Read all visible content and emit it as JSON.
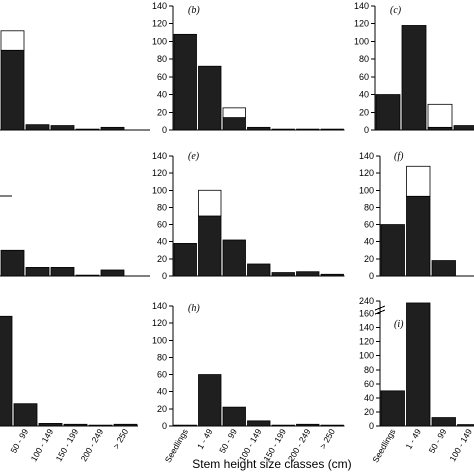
{
  "x_axis_title": "Stem height size classes (cm)",
  "colors": {
    "filled": "#1f1f1f",
    "open": "#ffffff",
    "axis": "#000000"
  },
  "chart_data": [
    {
      "panel": "a-partial",
      "type": "bar",
      "label": "",
      "categories": [
        "",
        "",
        "",
        "",
        "",
        "",
        ""
      ],
      "series": [
        {
          "values": [
            15,
            90,
            6,
            5,
            1,
            3,
            null
          ]
        },
        {
          "values": [
            0,
            22,
            0,
            0,
            0,
            0,
            null
          ]
        }
      ],
      "ylim": [
        0,
        140
      ],
      "yticks": []
    },
    {
      "panel": "b",
      "type": "bar",
      "label": "(b)",
      "categories": [
        "Seedlings",
        "1 - 49",
        "50 - 99",
        "100 - 149",
        "150 - 199",
        "200 - 249",
        "> 250"
      ],
      "series": [
        {
          "values": [
            108,
            72,
            14,
            3,
            1,
            1,
            1
          ]
        },
        {
          "values": [
            0,
            0,
            11,
            0,
            0,
            0,
            0
          ]
        }
      ],
      "ylim": [
        0,
        140
      ],
      "yticks": [
        0,
        20,
        40,
        60,
        80,
        100,
        120,
        140
      ]
    },
    {
      "panel": "c",
      "type": "bar",
      "label": "(c)",
      "categories": [
        "Seedlings",
        "1 - 49",
        "50 - 99",
        "100 - 149"
      ],
      "series": [
        {
          "values": [
            40,
            118,
            3,
            5
          ]
        },
        {
          "values": [
            0,
            0,
            26,
            0
          ]
        }
      ],
      "ylim": [
        0,
        140
      ],
      "yticks": [
        0,
        20,
        40,
        60,
        80,
        100,
        120,
        140
      ]
    },
    {
      "panel": "d-partial",
      "type": "bar",
      "label": "",
      "categories": [
        "",
        "",
        "",
        "",
        "",
        "",
        ""
      ],
      "series": [
        {
          "values": [
            62,
            30,
            10,
            10,
            1,
            7,
            null
          ]
        },
        {
          "values": [
            38,
            0,
            0,
            0,
            0,
            0,
            null
          ]
        }
      ],
      "ylim": [
        0,
        140
      ],
      "yticks": []
    },
    {
      "panel": "e",
      "type": "bar",
      "label": "(e)",
      "categories": [
        "Seedlings",
        "1 - 49",
        "50 - 99",
        "100 - 149",
        "150 - 199",
        "200 - 249",
        "> 250"
      ],
      "series": [
        {
          "values": [
            38,
            70,
            42,
            14,
            4,
            5,
            2
          ]
        },
        {
          "values": [
            0,
            30,
            0,
            0,
            0,
            0,
            0
          ]
        }
      ],
      "ylim": [
        0,
        140
      ],
      "yticks": [
        0,
        20,
        40,
        60,
        80,
        100,
        120,
        140
      ]
    },
    {
      "panel": "f",
      "type": "bar",
      "label": "(f)",
      "categories": [
        "Seedlings",
        "1 - 49",
        "50 - 99",
        "100 - 149"
      ],
      "series": [
        {
          "values": [
            60,
            93,
            18,
            0
          ]
        },
        {
          "values": [
            0,
            35,
            0,
            0
          ]
        }
      ],
      "ylim": [
        0,
        140
      ],
      "yticks": [
        0,
        20,
        40,
        60,
        80,
        100,
        120,
        140
      ]
    },
    {
      "panel": "g-partial",
      "type": "bar",
      "label": "",
      "categories": [
        "",
        "50 - 99",
        "100 - 149",
        "150 - 199",
        "200 - 249",
        "> 250"
      ],
      "series": [
        {
          "values": [
            128,
            26,
            3,
            2,
            1,
            2
          ]
        },
        {
          "values": [
            0,
            0,
            0,
            0,
            0,
            0
          ]
        }
      ],
      "ylim": [
        0,
        140
      ],
      "yticks": []
    },
    {
      "panel": "h",
      "type": "bar",
      "label": "(h)",
      "categories": [
        "Seedlings",
        "1 - 49",
        "50 - 99",
        "100 - 149",
        "150 - 199",
        "200 - 249",
        "> 250"
      ],
      "series": [
        {
          "values": [
            1,
            60,
            22,
            6,
            1,
            2,
            1
          ]
        },
        {
          "values": [
            0,
            0,
            0,
            0,
            0,
            0,
            0
          ]
        }
      ],
      "ylim": [
        0,
        140
      ],
      "yticks": [
        0,
        20,
        40,
        60,
        80,
        100,
        120,
        140
      ]
    },
    {
      "panel": "i",
      "type": "bar",
      "label": "(i)",
      "categories": [
        "Seedlings",
        "1 - 49",
        "50 - 99",
        "100 - 149"
      ],
      "series": [
        {
          "values": [
            50,
            230,
            12,
            2
          ]
        },
        {
          "values": [
            0,
            0,
            0,
            0
          ]
        }
      ],
      "ylim": [
        0,
        240
      ],
      "yticks": [
        0,
        20,
        40,
        60,
        80,
        100,
        120,
        140,
        160,
        240
      ],
      "axis_break": [
        165,
        225
      ]
    }
  ]
}
